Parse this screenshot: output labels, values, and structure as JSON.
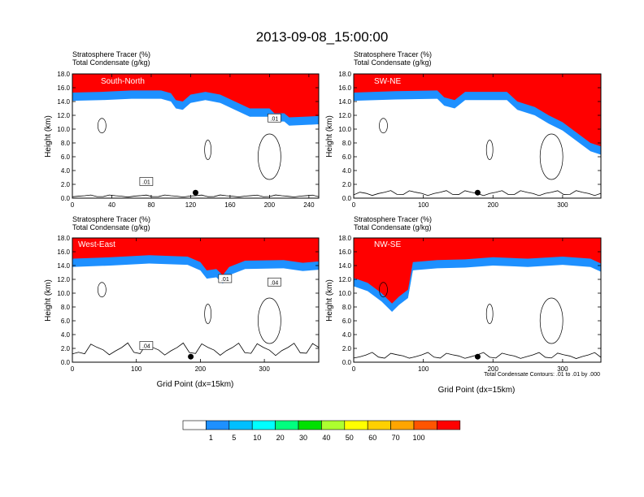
{
  "title": "2013-09-08_15:00:00",
  "panel_header": {
    "line1": "Stratosphere Tracer   (%)",
    "line2": "Total Condensate   (g/kg)"
  },
  "ylabel": "Height (km)",
  "xlabel": "Grid Point (dx=15km)",
  "contour_note": "Total Condensate Contours: .01 to .01 by .000",
  "colorbar": {
    "colors": [
      "#ffffff",
      "#1e90ff",
      "#00bfff",
      "#00ffff",
      "#00ff7f",
      "#00e000",
      "#adff2f",
      "#ffff00",
      "#ffd000",
      "#ffa500",
      "#ff5500",
      "#ff0000"
    ],
    "labels": [
      "1",
      "5",
      "10",
      "20",
      "30",
      "40",
      "50",
      "60",
      "70",
      "100"
    ]
  },
  "chart_data": [
    {
      "type": "heatmap",
      "name": "South-North",
      "xlim": [
        0,
        250
      ],
      "ylim": [
        0,
        18
      ],
      "xticks": [
        0,
        40,
        80,
        120,
        160,
        200,
        240
      ],
      "yticks": [
        "0.0",
        "2.0",
        "4.0",
        "6.0",
        "8.0",
        "10.0",
        "12.0",
        "14.0",
        "16.0",
        "18.0"
      ],
      "tracer_top_profile": [
        [
          0,
          15.3
        ],
        [
          30,
          15.4
        ],
        [
          60,
          15.6
        ],
        [
          90,
          15.6
        ],
        [
          100,
          15.2
        ],
        [
          105,
          14.2
        ],
        [
          112,
          14.0
        ],
        [
          120,
          15.0
        ],
        [
          135,
          15.4
        ],
        [
          150,
          15.0
        ],
        [
          165,
          14.0
        ],
        [
          180,
          13.0
        ],
        [
          200,
          13.0
        ],
        [
          205,
          12.3
        ],
        [
          215,
          12.3
        ],
        [
          220,
          11.7
        ],
        [
          235,
          11.8
        ],
        [
          250,
          11.9
        ]
      ],
      "contour_labels": [
        ".01",
        ".01"
      ],
      "terrain_height_km": 0.5,
      "marker_x": 125
    },
    {
      "type": "heatmap",
      "name": "SW-NE",
      "xlim": [
        0,
        355
      ],
      "ylim": [
        0,
        18
      ],
      "xticks": [
        0,
        100,
        200,
        300
      ],
      "yticks": [
        "0.0",
        "2.0",
        "4.0",
        "6.0",
        "8.0",
        "10.0",
        "12.0",
        "14.0",
        "16.0",
        "18.0"
      ],
      "tracer_top_profile": [
        [
          0,
          15.3
        ],
        [
          60,
          15.5
        ],
        [
          120,
          15.6
        ],
        [
          130,
          14.6
        ],
        [
          145,
          14.2
        ],
        [
          160,
          15.4
        ],
        [
          220,
          15.4
        ],
        [
          235,
          14.0
        ],
        [
          260,
          13.2
        ],
        [
          280,
          12.0
        ],
        [
          300,
          11.0
        ],
        [
          320,
          9.5
        ],
        [
          340,
          8.0
        ],
        [
          355,
          7.5
        ]
      ],
      "contour_labels": [],
      "terrain_height_km": 1.2,
      "marker_x": 178
    },
    {
      "type": "heatmap",
      "name": "West-East",
      "xlim": [
        0,
        385
      ],
      "ylim": [
        0,
        18
      ],
      "xticks": [
        0,
        100,
        200,
        300
      ],
      "yticks": [
        "0.0",
        "2.0",
        "4.0",
        "6.0",
        "8.0",
        "10.0",
        "12.0",
        "14.0",
        "16.0",
        "18.0"
      ],
      "tracer_top_profile": [
        [
          0,
          15.0
        ],
        [
          60,
          15.2
        ],
        [
          120,
          15.5
        ],
        [
          180,
          15.3
        ],
        [
          200,
          14.5
        ],
        [
          210,
          13.3
        ],
        [
          225,
          13.5
        ],
        [
          235,
          12.6
        ],
        [
          245,
          13.8
        ],
        [
          270,
          14.7
        ],
        [
          330,
          14.8
        ],
        [
          360,
          14.4
        ],
        [
          385,
          14.6
        ]
      ],
      "contour_labels": [
        ".04",
        ".04",
        ".01"
      ],
      "terrain_height_km": 3.0,
      "marker_x": 185
    },
    {
      "type": "heatmap",
      "name": "NW-SE",
      "xlim": [
        0,
        355
      ],
      "ylim": [
        0,
        18
      ],
      "xticks": [
        0,
        100,
        200,
        300
      ],
      "yticks": [
        "0.0",
        "2.0",
        "4.0",
        "6.0",
        "8.0",
        "10.0",
        "12.0",
        "14.0",
        "16.0",
        "18.0"
      ],
      "tracer_top_profile": [
        [
          0,
          12.2
        ],
        [
          20,
          11.5
        ],
        [
          40,
          10.0
        ],
        [
          55,
          8.5
        ],
        [
          65,
          9.5
        ],
        [
          78,
          10.5
        ],
        [
          85,
          14.5
        ],
        [
          120,
          14.8
        ],
        [
          160,
          14.9
        ],
        [
          200,
          15.2
        ],
        [
          250,
          15.0
        ],
        [
          300,
          15.3
        ],
        [
          340,
          15.0
        ],
        [
          355,
          14.3
        ]
      ],
      "contour_labels": [],
      "terrain_height_km": 1.5,
      "marker_x": 178
    }
  ]
}
